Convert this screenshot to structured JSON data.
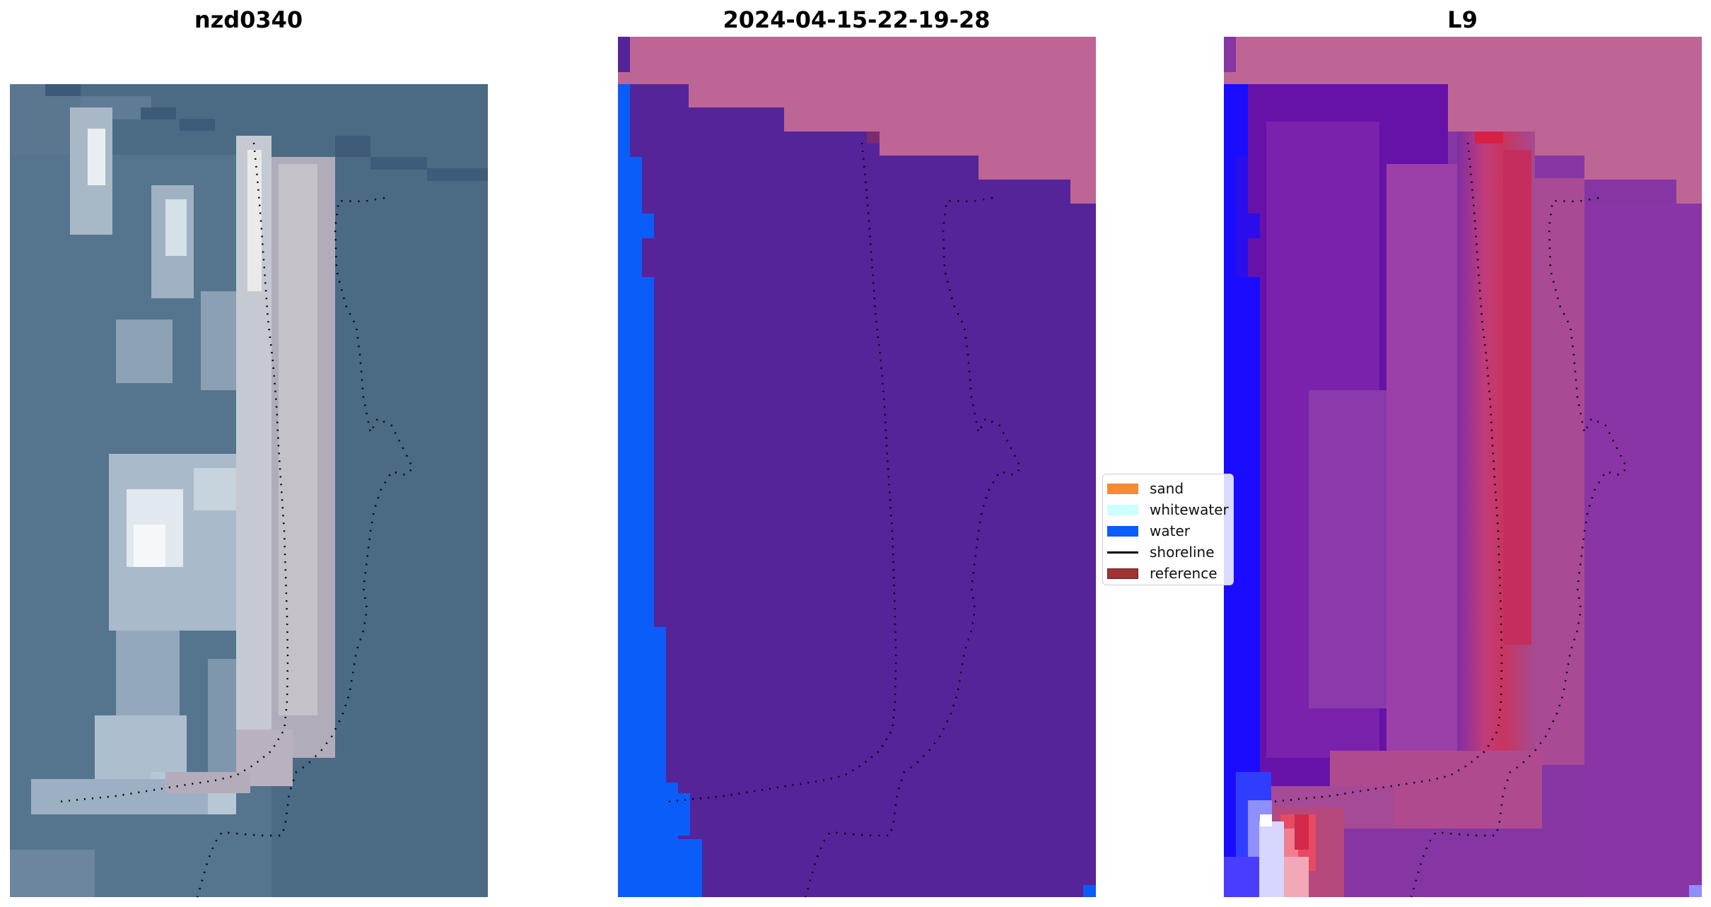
{
  "panels": [
    {
      "title": "nzd0340"
    },
    {
      "title": "2024-04-15-22-19-28"
    },
    {
      "title": "L9"
    }
  ],
  "legend": {
    "items": [
      {
        "label": "sand",
        "color": "#f58a34",
        "kind": "patch"
      },
      {
        "label": "whitewater",
        "color": "#ccffff",
        "kind": "patch"
      },
      {
        "label": "water",
        "color": "#0a5df9",
        "kind": "patch"
      },
      {
        "label": "shoreline",
        "color": "#000000",
        "kind": "line"
      },
      {
        "label": "reference",
        "color": "#a03334",
        "kind": "patch"
      }
    ]
  },
  "colors": {
    "nodata": "#bd6695",
    "land_class": "#552499",
    "water_class": "#0a5df9",
    "ocean_rgb": "#4b6a84",
    "shoreline_dots": "#000000"
  }
}
